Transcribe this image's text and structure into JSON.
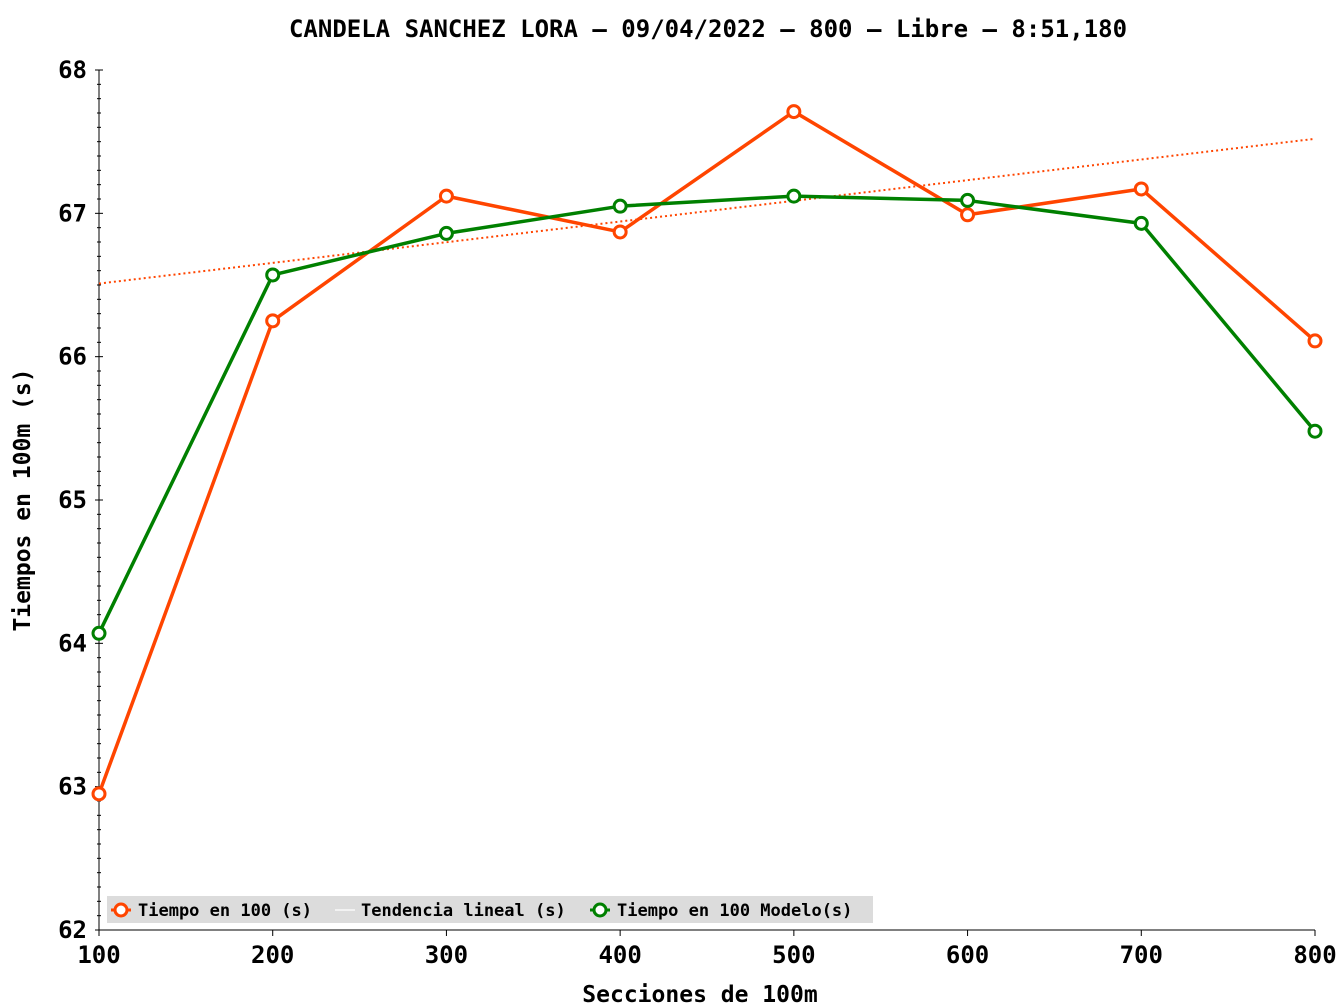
{
  "chart_data": {
    "type": "line",
    "title": "CANDELA SANCHEZ LORA – 09/04/2022 – 800 – Libre – 8:51,180",
    "xlabel": "Secciones de 100m",
    "ylabel": "Tiempos en 100m (s)",
    "x": [
      100,
      200,
      300,
      400,
      500,
      600,
      700,
      800
    ],
    "xlim": [
      100,
      800
    ],
    "ylim": [
      62,
      68
    ],
    "x_ticks": [
      100,
      200,
      300,
      400,
      500,
      600,
      700,
      800
    ],
    "y_ticks": [
      62,
      63,
      64,
      65,
      66,
      67,
      68
    ],
    "grid": false,
    "legend_position": "bottom-left",
    "series": [
      {
        "name": "Tiempo en 100 (s)",
        "color": "#ff4500",
        "marker": "circle",
        "values": [
          62.95,
          66.25,
          67.12,
          66.87,
          67.71,
          66.99,
          67.17,
          66.11
        ]
      },
      {
        "name": "Tendencia lineal (s)",
        "color": "#ff4500",
        "style": "dotted",
        "values": [
          66.51,
          66.65,
          66.8,
          66.94,
          67.09,
          67.23,
          67.38,
          67.52
        ]
      },
      {
        "name": "Tiempo en 100 Modelo(s)",
        "color": "#008000",
        "marker": "circle",
        "values": [
          64.07,
          66.57,
          66.86,
          67.05,
          67.12,
          67.09,
          66.93,
          65.48
        ]
      }
    ]
  }
}
